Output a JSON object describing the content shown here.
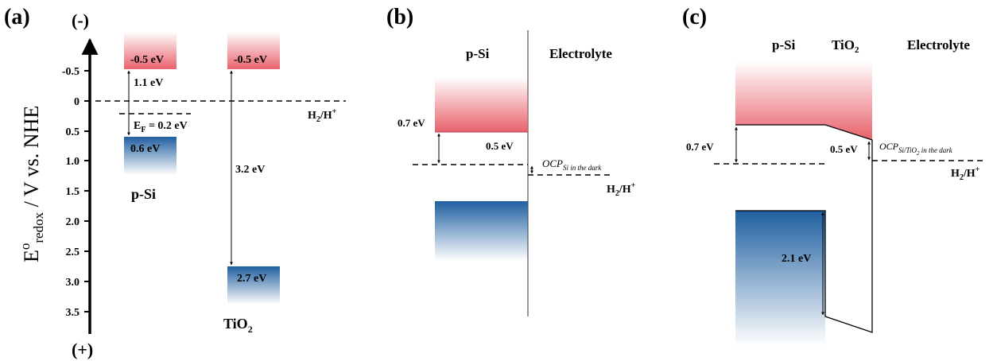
{
  "panel_a": {
    "label": "(a)",
    "y_axis_title_E": "E",
    "y_axis_title_sup": "o",
    "y_axis_title_sub": "redox",
    "y_axis_title_rest": " / V vs. NHE",
    "top_sign": "(-)",
    "bottom_sign": "(+)",
    "ticks": [
      "-0.5",
      "0",
      "0.5",
      "1.0",
      "1.5",
      "2.0",
      "2.5",
      "3.0",
      "3.5"
    ],
    "si_cb_label": "-0.5 eV",
    "si_vb_label": "0.6 eV",
    "si_gap_label": "1.1 eV",
    "ef_main": "E",
    "ef_sub": "F",
    "ef_value": " = 0.2 eV",
    "si_name": "p-Si",
    "tio2_cb_label": "-0.5 eV",
    "tio2_vb_label": "2.7 eV",
    "tio2_gap_label": "3.2 eV",
    "tio2_name_main": "TiO",
    "tio2_name_sub": "2",
    "h2_main": "H",
    "h2_sub": "2",
    "h2_rest": "/H",
    "h2_sup": "+"
  },
  "panel_b": {
    "label": "(b)",
    "psi_label": "p-Si",
    "electrolyte_label": "Electrolyte",
    "band_bend_label": "0.7 eV",
    "ocp_offset_label": "0.5 eV",
    "ocp_main": "OCP",
    "ocp_sub": "Si in the dark",
    "h2_main": "H",
    "h2_sub": "2",
    "h2_rest": "/H",
    "h2_sup": "+"
  },
  "panel_c": {
    "label": "(c)",
    "psi_label": "p-Si",
    "tio2_main": "TiO",
    "tio2_sub": "2",
    "electrolyte_label": "Electrolyte",
    "band_bend_label": "0.7 eV",
    "ocp_offset_label": "0.5 eV",
    "ocp_main": "OCP",
    "ocp_sub": "Si/TiO",
    "ocp_sub2": "2",
    "ocp_sub3": " in the dark",
    "h2_main": "H",
    "h2_sub": "2",
    "h2_rest": "/H",
    "h2_sup": "+",
    "gap_label": "2.1 eV"
  },
  "colors": {
    "cb_red": "#e8616b",
    "vb_blue": "#1f5fa0"
  }
}
